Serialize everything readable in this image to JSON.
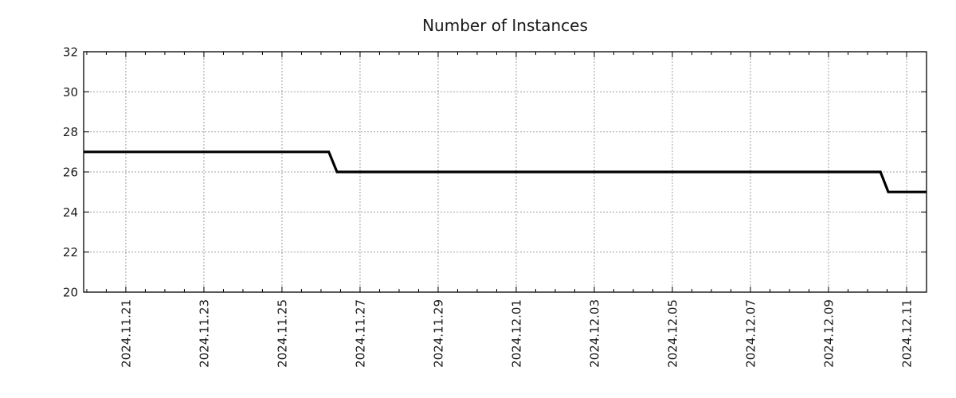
{
  "chart_data": {
    "type": "line",
    "title": "Number of Instances",
    "xlabel": "",
    "ylabel": "",
    "ylim": [
      20,
      32
    ],
    "y_ticks": [
      20,
      22,
      24,
      26,
      28,
      30,
      32
    ],
    "x_tick_labels": [
      "2024.11.21",
      "2024.11.23",
      "2024.11.25",
      "2024.11.27",
      "2024.11.29",
      "2024.12.01",
      "2024.12.03",
      "2024.12.05",
      "2024.12.07",
      "2024.12.09",
      "2024.12.11"
    ],
    "x_tick_offsets_days": [
      0,
      2,
      4,
      6,
      8,
      10,
      12,
      14,
      16,
      18,
      20
    ],
    "x_minor_tick_interval_days": 0.5,
    "x_range_days": [
      -1.08,
      20.51
    ],
    "grid": true,
    "legend_position": "none",
    "series": [
      {
        "name": "Number of Instances",
        "step_points": [
          {
            "x_days": -1.08,
            "value": 27
          },
          {
            "x_days": 5.2,
            "value": 27
          },
          {
            "x_days": 5.41,
            "value": 26
          },
          {
            "x_days": 19.33,
            "value": 26
          },
          {
            "x_days": 19.53,
            "value": 25
          },
          {
            "x_days": 20.51,
            "value": 25
          }
        ]
      }
    ],
    "colors": {
      "line": "#000000",
      "grid": "#a0a0a0",
      "axis": "#000000",
      "text": "#1a1a1a",
      "background": "#ffffff"
    }
  }
}
